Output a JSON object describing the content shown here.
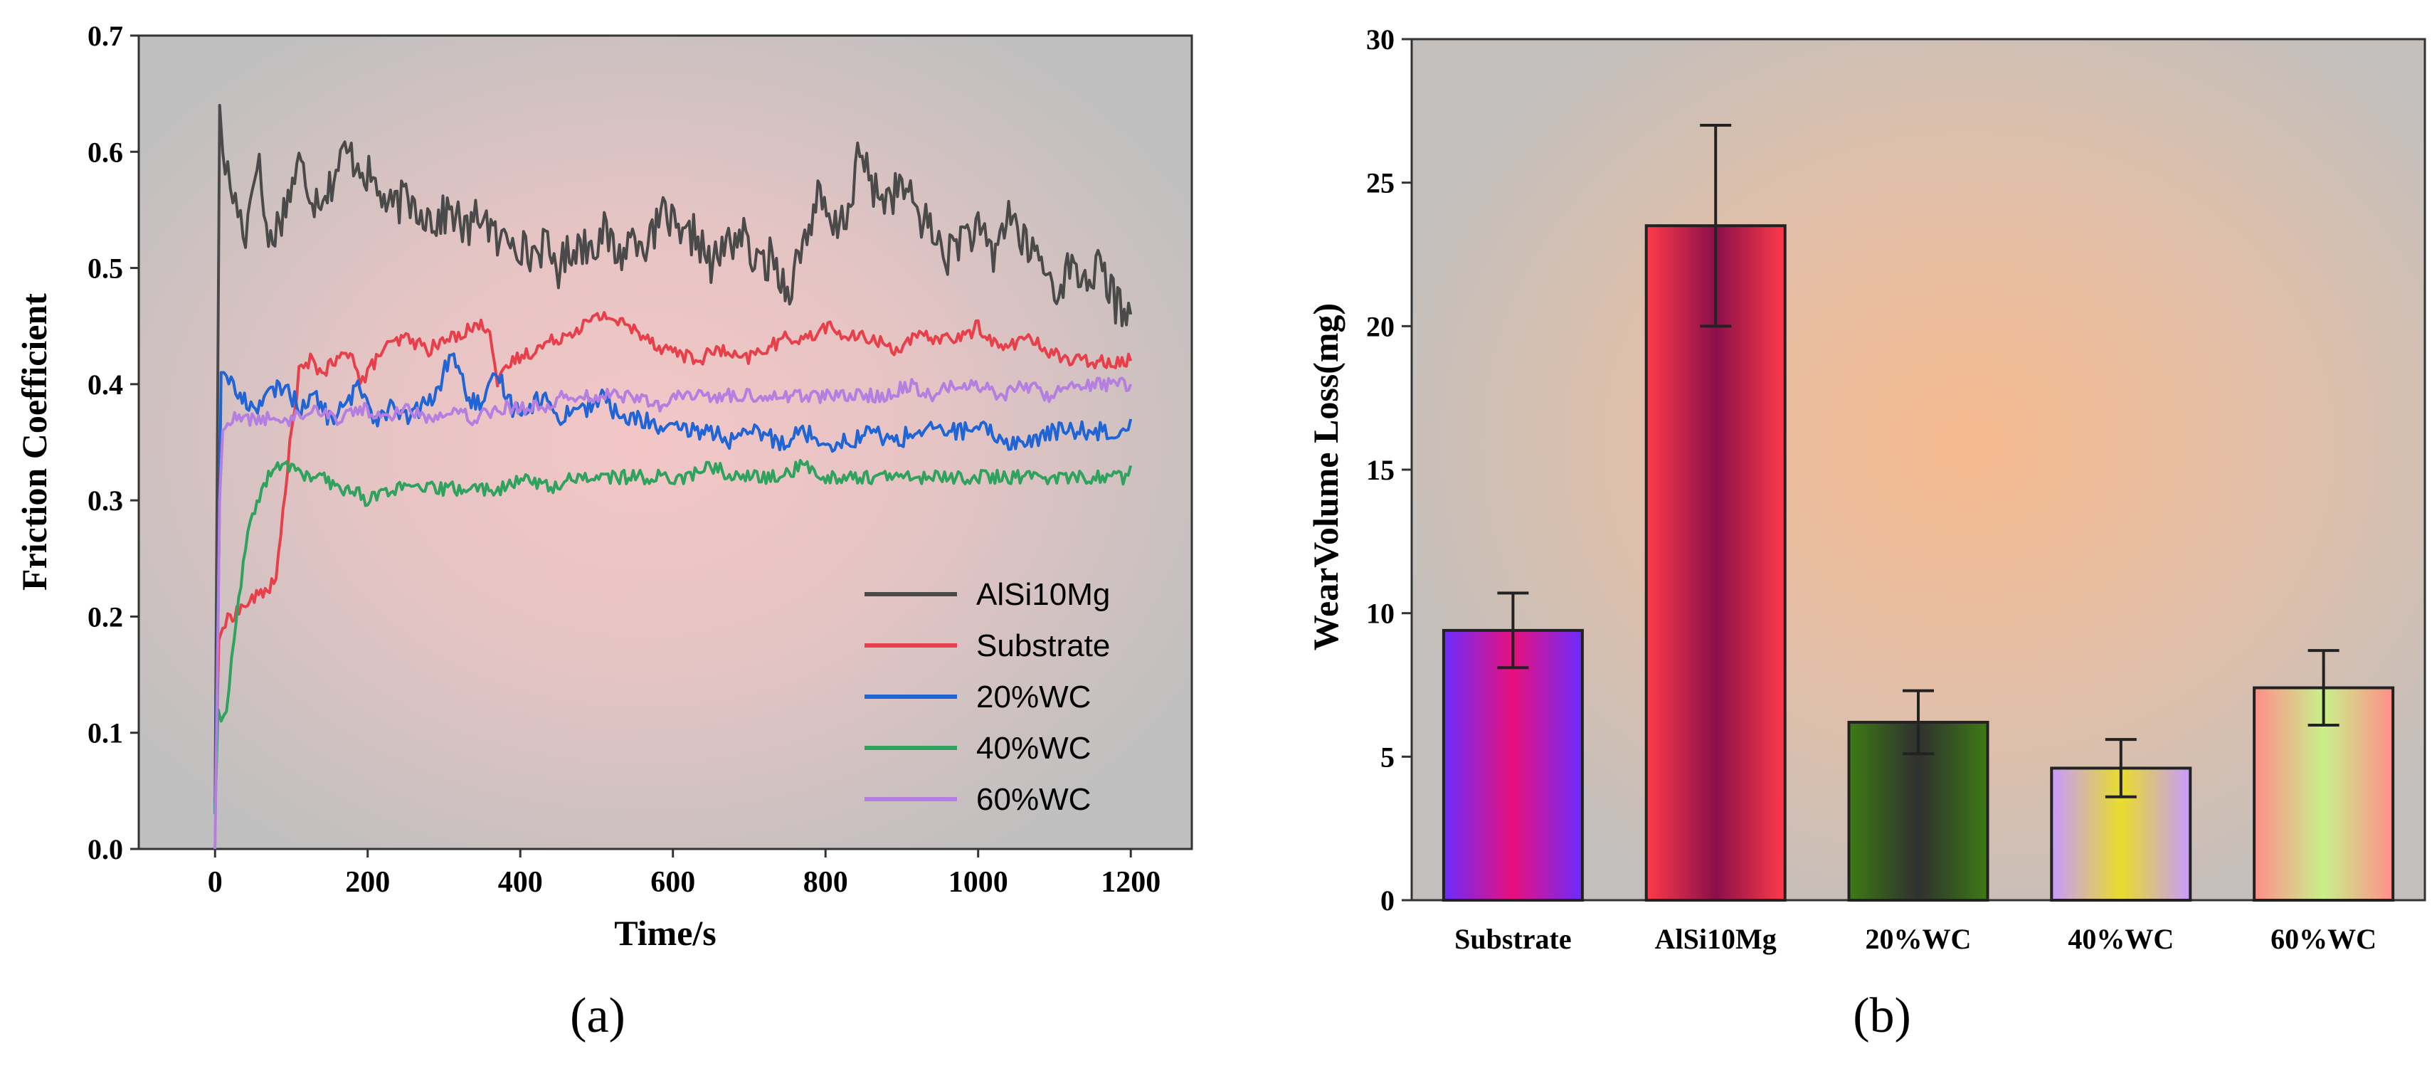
{
  "chart_data": [
    {
      "type": "line",
      "panel_label": "(a)",
      "xlabel": "Time/s",
      "ylabel": "Friction Coefficient",
      "xlim": [
        -100,
        1280
      ],
      "ylim": [
        0,
        0.7
      ],
      "xticks": [
        "0",
        "200",
        "400",
        "600",
        "800",
        "1000",
        "1200"
      ],
      "yticks": [
        "0.0",
        "0.1",
        "0.2",
        "0.3",
        "0.4",
        "0.5",
        "0.6",
        "0.7"
      ],
      "legend_position": "bottom-right",
      "series": [
        {
          "name": "AlSi10Mg",
          "color": "#4a4a4a",
          "x": [
            0,
            3,
            6,
            10,
            20,
            30,
            40,
            55,
            70,
            90,
            110,
            130,
            150,
            170,
            190,
            210,
            230,
            250,
            270,
            290,
            310,
            330,
            350,
            370,
            390,
            410,
            430,
            450,
            470,
            490,
            510,
            530,
            550,
            570,
            590,
            610,
            630,
            650,
            670,
            690,
            710,
            730,
            750,
            770,
            790,
            810,
            830,
            845,
            860,
            880,
            900,
            920,
            940,
            960,
            980,
            1000,
            1020,
            1040,
            1060,
            1080,
            1100,
            1120,
            1140,
            1160,
            1180,
            1200
          ],
          "values": [
            0.03,
            0.35,
            0.64,
            0.6,
            0.57,
            0.55,
            0.53,
            0.6,
            0.52,
            0.55,
            0.59,
            0.56,
            0.57,
            0.6,
            0.59,
            0.57,
            0.55,
            0.56,
            0.55,
            0.54,
            0.55,
            0.53,
            0.55,
            0.52,
            0.53,
            0.51,
            0.52,
            0.5,
            0.52,
            0.52,
            0.53,
            0.51,
            0.53,
            0.52,
            0.55,
            0.52,
            0.53,
            0.5,
            0.52,
            0.53,
            0.5,
            0.51,
            0.48,
            0.52,
            0.56,
            0.53,
            0.55,
            0.6,
            0.57,
            0.56,
            0.57,
            0.55,
            0.53,
            0.51,
            0.53,
            0.53,
            0.51,
            0.55,
            0.52,
            0.51,
            0.48,
            0.5,
            0.49,
            0.5,
            0.47,
            0.46
          ]
        },
        {
          "name": "Substrate",
          "color": "#e8404a",
          "x": [
            0,
            5,
            10,
            20,
            40,
            60,
            80,
            95,
            110,
            125,
            140,
            160,
            180,
            190,
            200,
            220,
            250,
            280,
            310,
            340,
            360,
            370,
            390,
            420,
            450,
            480,
            510,
            540,
            570,
            585,
            600,
            630,
            660,
            690,
            720,
            750,
            780,
            800,
            830,
            860,
            890,
            920,
            950,
            980,
            1000,
            1030,
            1060,
            1090,
            1120,
            1150,
            1180,
            1200
          ],
          "values": [
            0.04,
            0.18,
            0.19,
            0.2,
            0.21,
            0.22,
            0.23,
            0.33,
            0.41,
            0.42,
            0.41,
            0.42,
            0.43,
            0.4,
            0.41,
            0.43,
            0.44,
            0.43,
            0.44,
            0.45,
            0.45,
            0.4,
            0.42,
            0.43,
            0.44,
            0.45,
            0.46,
            0.45,
            0.44,
            0.43,
            0.43,
            0.42,
            0.43,
            0.42,
            0.43,
            0.44,
            0.44,
            0.45,
            0.44,
            0.44,
            0.43,
            0.44,
            0.44,
            0.44,
            0.45,
            0.43,
            0.44,
            0.43,
            0.42,
            0.42,
            0.42,
            0.42
          ]
        },
        {
          "name": "20%WC",
          "color": "#1f65d6",
          "x": [
            0,
            4,
            8,
            15,
            30,
            50,
            70,
            90,
            110,
            130,
            150,
            170,
            190,
            210,
            230,
            250,
            270,
            290,
            310,
            330,
            350,
            370,
            390,
            410,
            430,
            450,
            470,
            490,
            510,
            530,
            560,
            590,
            620,
            650,
            680,
            710,
            740,
            770,
            800,
            830,
            860,
            890,
            920,
            950,
            980,
            1010,
            1040,
            1070,
            1100,
            1130,
            1160,
            1190,
            1200
          ],
          "values": [
            0.03,
            0.2,
            0.41,
            0.41,
            0.39,
            0.38,
            0.39,
            0.4,
            0.38,
            0.39,
            0.37,
            0.38,
            0.4,
            0.37,
            0.38,
            0.37,
            0.38,
            0.39,
            0.43,
            0.39,
            0.38,
            0.41,
            0.38,
            0.38,
            0.39,
            0.37,
            0.38,
            0.38,
            0.39,
            0.37,
            0.37,
            0.36,
            0.36,
            0.36,
            0.35,
            0.36,
            0.35,
            0.36,
            0.35,
            0.35,
            0.36,
            0.35,
            0.36,
            0.36,
            0.36,
            0.36,
            0.35,
            0.35,
            0.36,
            0.36,
            0.36,
            0.36,
            0.37
          ]
        },
        {
          "name": "40%WC",
          "color": "#2fa35e",
          "x": [
            0,
            4,
            8,
            15,
            25,
            40,
            55,
            70,
            85,
            100,
            120,
            140,
            160,
            180,
            200,
            230,
            260,
            290,
            320,
            350,
            380,
            410,
            440,
            470,
            500,
            530,
            560,
            590,
            620,
            650,
            680,
            710,
            740,
            770,
            800,
            830,
            860,
            890,
            920,
            950,
            980,
            1010,
            1040,
            1070,
            1100,
            1130,
            1160,
            1190,
            1200
          ],
          "values": [
            0.03,
            0.12,
            0.11,
            0.12,
            0.18,
            0.26,
            0.3,
            0.32,
            0.33,
            0.33,
            0.32,
            0.32,
            0.31,
            0.31,
            0.3,
            0.31,
            0.31,
            0.31,
            0.31,
            0.31,
            0.31,
            0.32,
            0.31,
            0.32,
            0.32,
            0.32,
            0.32,
            0.32,
            0.32,
            0.33,
            0.32,
            0.32,
            0.32,
            0.33,
            0.32,
            0.32,
            0.32,
            0.32,
            0.32,
            0.32,
            0.32,
            0.32,
            0.32,
            0.32,
            0.32,
            0.32,
            0.32,
            0.32,
            0.33
          ]
        },
        {
          "name": "60%WC",
          "color": "#b47fe0",
          "x": [
            0,
            3,
            6,
            10,
            20,
            40,
            60,
            80,
            100,
            130,
            160,
            190,
            220,
            250,
            280,
            310,
            340,
            370,
            400,
            430,
            460,
            490,
            520,
            550,
            580,
            610,
            640,
            670,
            700,
            730,
            760,
            790,
            820,
            850,
            880,
            910,
            940,
            970,
            1000,
            1030,
            1060,
            1090,
            1120,
            1150,
            1180,
            1200
          ],
          "values": [
            0.0,
            0.15,
            0.3,
            0.36,
            0.37,
            0.37,
            0.37,
            0.37,
            0.37,
            0.38,
            0.37,
            0.38,
            0.37,
            0.38,
            0.37,
            0.38,
            0.37,
            0.38,
            0.38,
            0.38,
            0.39,
            0.39,
            0.39,
            0.39,
            0.38,
            0.39,
            0.39,
            0.39,
            0.39,
            0.39,
            0.39,
            0.39,
            0.39,
            0.39,
            0.39,
            0.4,
            0.39,
            0.4,
            0.4,
            0.39,
            0.4,
            0.39,
            0.4,
            0.4,
            0.4,
            0.4
          ]
        }
      ]
    },
    {
      "type": "bar",
      "panel_label": "(b)",
      "xlabel": "",
      "ylabel": "WearVolume Loss(mg)",
      "ylim": [
        0,
        30
      ],
      "yticks": [
        "0",
        "5",
        "10",
        "15",
        "20",
        "25",
        "30"
      ],
      "categories": [
        "Substrate",
        "AlSi10Mg",
        "20%WC",
        "40%WC",
        "60%WC"
      ],
      "values": [
        9.4,
        23.5,
        6.2,
        4.6,
        7.4
      ],
      "errors": [
        1.3,
        3.5,
        1.1,
        1.0,
        1.3
      ],
      "bar_colors": [
        [
          "#e8107a",
          "#6a2cff"
        ],
        [
          "#8a0f4a",
          "#ff3a4a"
        ],
        [
          "#303030",
          "#3d7a14"
        ],
        [
          "#e8dd2a",
          "#c79aff"
        ],
        [
          "#c8f08a",
          "#ff8e8a"
        ]
      ]
    }
  ]
}
